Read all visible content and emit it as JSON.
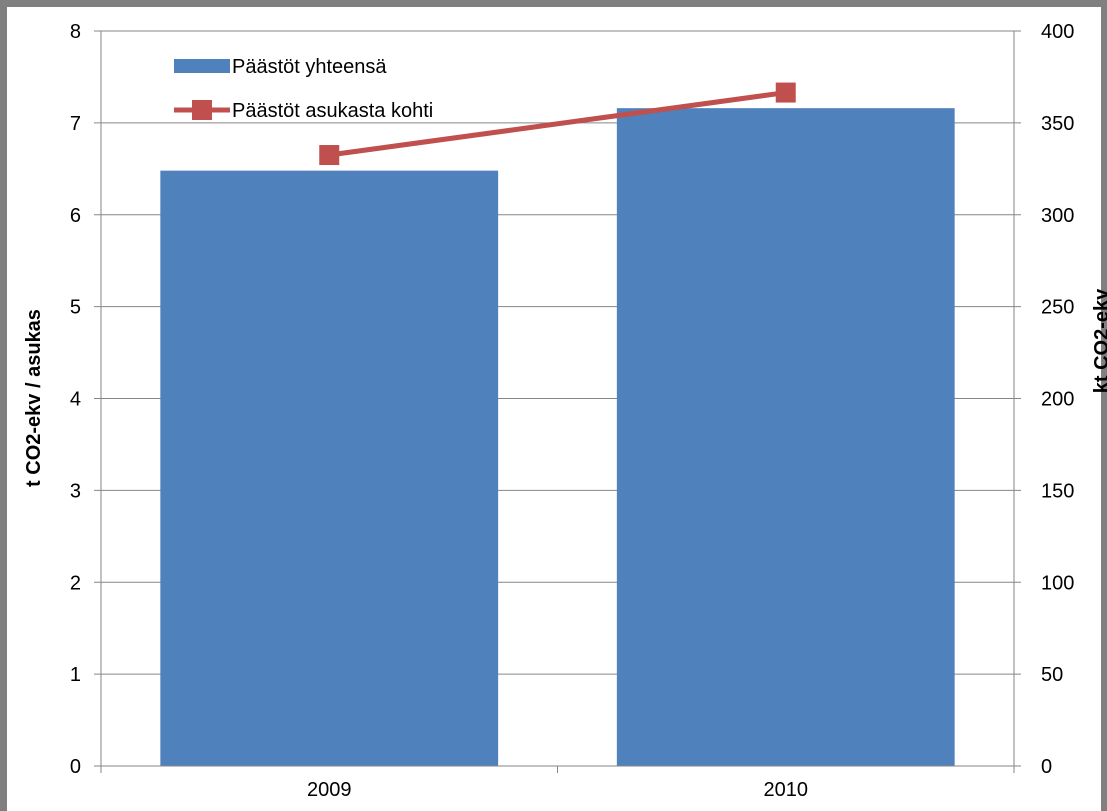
{
  "chart_data": {
    "type": "bar",
    "categories": [
      "2009",
      "2010"
    ],
    "series": [
      {
        "name": "Päästöt yhteensä",
        "type": "bar",
        "axis": "right",
        "values": [
          324,
          358
        ],
        "color": "#4F81BD"
      },
      {
        "name": "Päästöt asukasta kohti",
        "type": "line",
        "axis": "left",
        "values": [
          6.65,
          7.33
        ],
        "color": "#C0504D",
        "marker": "square"
      }
    ],
    "left_axis": {
      "label": "t CO2-ekv / asukas",
      "ylim": [
        0,
        8
      ],
      "ticks": [
        "0",
        "1",
        "2",
        "3",
        "4",
        "5",
        "6",
        "7",
        "8"
      ]
    },
    "right_axis": {
      "label": "kt CO2-ekv",
      "ylim": [
        0,
        400
      ],
      "ticks": [
        "0",
        "50",
        "100",
        "150",
        "200",
        "250",
        "300",
        "350",
        "400"
      ]
    },
    "grid": true,
    "legend_placement": "top-left"
  }
}
